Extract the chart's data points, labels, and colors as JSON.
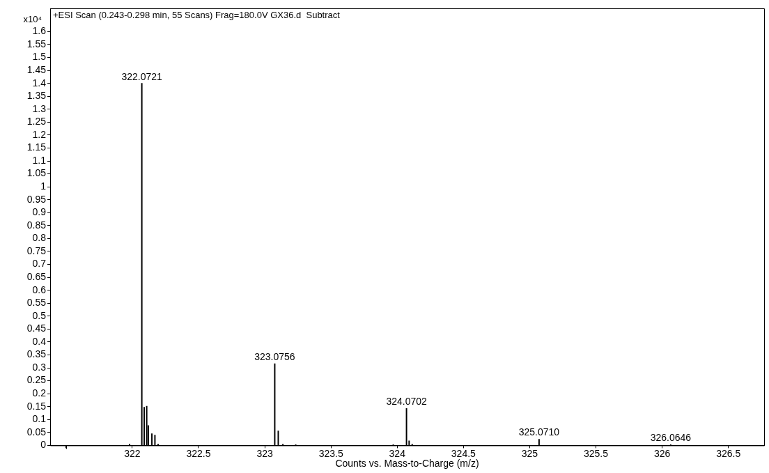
{
  "chart_data": {
    "type": "bar",
    "title": "+ESI Scan (0.243-0.298 min, 55 Scans) Frag=180.0V GX36.d  Subtract",
    "xlabel": "Counts vs. Mass-to-Charge (m/z)",
    "ylabel": "x10⁴",
    "x": [
      321.98,
      322.0721,
      322.09,
      322.109,
      322.121,
      322.148,
      322.171,
      322.195,
      323.0756,
      323.102,
      323.137,
      323.234,
      323.97,
      324.0702,
      324.09,
      324.113,
      325.071,
      325.09,
      326.0646
    ],
    "values": [
      0.005,
      1.4,
      0.148,
      0.152,
      0.077,
      0.045,
      0.04,
      0.005,
      0.316,
      0.056,
      0.005,
      0.003,
      0.003,
      0.143,
      0.018,
      0.005,
      0.024,
      null,
      0.003
    ],
    "color": "#000000",
    "xlim": [
      321.38,
      326.77
    ],
    "xticks": [
      {
        "value": 321.5,
        "label": null
      },
      322,
      322.5,
      323,
      323.5,
      324,
      324.5,
      325,
      325.5,
      326,
      326.5
    ],
    "ylim": [
      0,
      1.69
    ],
    "yticks": [
      0,
      0.05,
      0.1,
      0.15,
      0.2,
      0.25,
      0.3,
      0.35,
      0.4,
      0.45,
      0.5,
      0.55,
      0.6,
      0.65,
      0.7,
      0.75,
      0.8,
      0.85,
      0.9,
      0.95,
      1,
      1.05,
      1.1,
      1.15,
      1.2,
      1.25,
      1.3,
      1.35,
      1.4,
      1.45,
      1.5,
      1.55,
      1.6
    ],
    "annotations": [
      {
        "text": "322.0721",
        "x": 322.0721,
        "y": 1.4
      },
      {
        "text": "323.0756",
        "x": 323.0756,
        "y": 0.316
      },
      {
        "text": "324.0702",
        "x": 324.0702,
        "y": 0.143
      },
      {
        "text": "325.0710",
        "x": 325.071,
        "y": 0.024
      },
      {
        "text": "326.0646",
        "x": 326.0646,
        "y": 0.003
      }
    ],
    "grid": false,
    "legend": false
  }
}
